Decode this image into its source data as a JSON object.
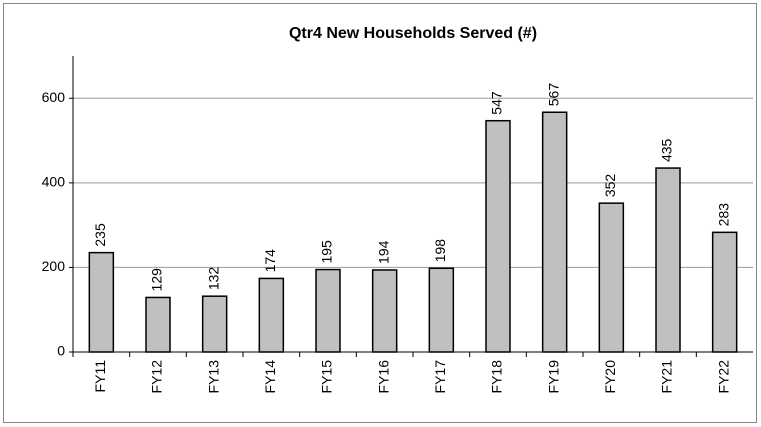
{
  "chart_data": {
    "type": "bar",
    "title": "Qtr4 New Households Served (#)",
    "categories": [
      "FY11",
      "FY12",
      "FY13",
      "FY14",
      "FY15",
      "FY16",
      "FY17",
      "FY18",
      "FY19",
      "FY20",
      "FY21",
      "FY22"
    ],
    "values": [
      235,
      129,
      132,
      174,
      195,
      194,
      198,
      547,
      567,
      352,
      435,
      283
    ],
    "color": "#c0c0c0",
    "ylim": [
      0,
      700
    ],
    "yticks": [
      0,
      200,
      400,
      600
    ],
    "grid": true
  }
}
